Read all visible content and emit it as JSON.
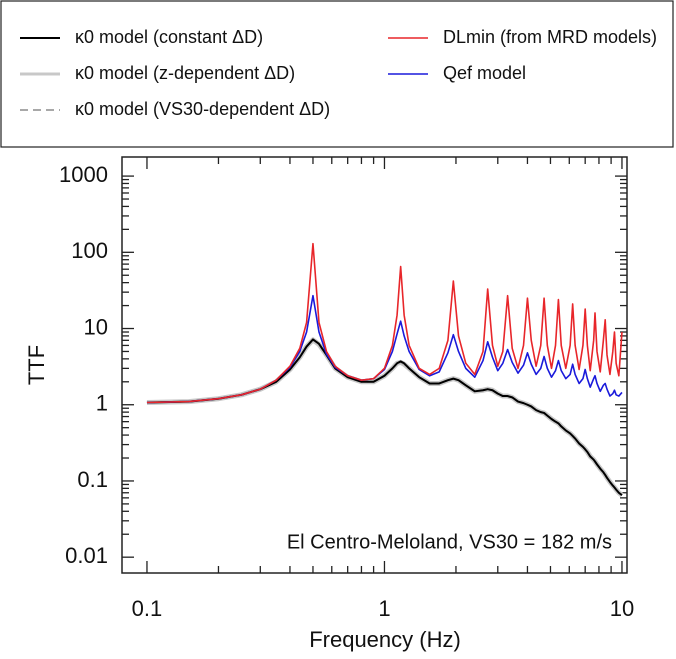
{
  "chart_data": {
    "type": "line",
    "xlabel": "Frequency (Hz)",
    "ylabel": "TTF",
    "annotation": "El Centro-Meloland, VS30 = 182 m/s",
    "xscale": "log",
    "yscale": "log",
    "grid": false,
    "legend": "top",
    "xlim": [
      0.0785,
      10.5
    ],
    "ylim": [
      0.0062,
      1780
    ],
    "xticks": [
      0.1,
      1,
      10
    ],
    "yticks": [
      0.01,
      0.1,
      1,
      10,
      100,
      1000
    ],
    "xminorticks": [
      0.2,
      0.3,
      0.4,
      0.5,
      0.6,
      0.7,
      0.8,
      0.9,
      2,
      3,
      4,
      5,
      6,
      7,
      8,
      9
    ],
    "yminorticks": [
      0.02,
      0.03,
      0.04,
      0.05,
      0.06,
      0.07,
      0.08,
      0.09,
      0.2,
      0.3,
      0.4,
      0.5,
      0.6,
      0.7,
      0.8,
      0.9,
      2,
      3,
      4,
      5,
      6,
      7,
      8,
      9,
      20,
      30,
      40,
      50,
      60,
      70,
      80,
      90,
      200,
      300,
      400,
      500,
      600,
      700,
      800,
      900
    ],
    "x": [
      0.1,
      0.15,
      0.2,
      0.25,
      0.3,
      0.35,
      0.4,
      0.44,
      0.47,
      0.5,
      0.53,
      0.57,
      0.62,
      0.7,
      0.8,
      0.9,
      1.0,
      1.08,
      1.13,
      1.17,
      1.21,
      1.27,
      1.4,
      1.55,
      1.7,
      1.85,
      1.95,
      2.05,
      2.2,
      2.4,
      2.6,
      2.72,
      2.85,
      3.0,
      3.15,
      3.3,
      3.45,
      3.65,
      3.85,
      4.0,
      4.15,
      4.35,
      4.55,
      4.7,
      4.85,
      5.05,
      5.25,
      5.4,
      5.55,
      5.8,
      6.05,
      6.2,
      6.35,
      6.6,
      6.85,
      7.0,
      7.15,
      7.35,
      7.6,
      7.7,
      7.85,
      8.1,
      8.35,
      8.5,
      8.65,
      8.9,
      9.15,
      9.3,
      9.45,
      9.7,
      10
    ],
    "series": [
      {
        "name": "κ0 model (constant ΔD)",
        "color": "#000000",
        "dash": false,
        "width": 2,
        "values": [
          1.07,
          1.1,
          1.2,
          1.35,
          1.6,
          2.0,
          2.9,
          4.2,
          5.8,
          7.2,
          6.3,
          4.5,
          3.0,
          2.3,
          2.0,
          2.0,
          2.4,
          3.0,
          3.5,
          3.7,
          3.5,
          3.0,
          2.3,
          1.9,
          1.9,
          2.1,
          2.2,
          2.1,
          1.8,
          1.5,
          1.55,
          1.6,
          1.55,
          1.4,
          1.3,
          1.3,
          1.25,
          1.1,
          1.05,
          1.0,
          0.95,
          0.85,
          0.8,
          0.78,
          0.72,
          0.65,
          0.6,
          0.57,
          0.52,
          0.46,
          0.42,
          0.39,
          0.36,
          0.31,
          0.28,
          0.26,
          0.24,
          0.21,
          0.19,
          0.18,
          0.165,
          0.145,
          0.13,
          0.12,
          0.11,
          0.097,
          0.087,
          0.082,
          0.077,
          0.07,
          0.065
        ]
      },
      {
        "name": "κ0 model (z-dependent ΔD)",
        "color": "#c8c8c8",
        "dash": false,
        "width": 5,
        "values": [
          1.07,
          1.1,
          1.2,
          1.35,
          1.6,
          2.0,
          2.9,
          4.2,
          5.8,
          7.1,
          6.2,
          4.5,
          3.0,
          2.3,
          2.0,
          2.0,
          2.4,
          3.0,
          3.5,
          3.6,
          3.4,
          3.0,
          2.3,
          1.9,
          1.9,
          2.1,
          2.2,
          2.1,
          1.8,
          1.5,
          1.55,
          1.6,
          1.55,
          1.4,
          1.3,
          1.3,
          1.25,
          1.1,
          1.05,
          1.0,
          0.95,
          0.85,
          0.8,
          0.78,
          0.72,
          0.65,
          0.6,
          0.57,
          0.52,
          0.46,
          0.42,
          0.39,
          0.36,
          0.31,
          0.28,
          0.26,
          0.24,
          0.21,
          0.19,
          0.18,
          0.165,
          0.145,
          0.13,
          0.12,
          0.11,
          0.097,
          0.087,
          0.082,
          0.077,
          0.07,
          0.065
        ]
      },
      {
        "name": "κ0 model (VS30-dependent ΔD)",
        "color": "#a8a8a8",
        "dash": true,
        "width": 2,
        "values": [
          1.07,
          1.1,
          1.2,
          1.35,
          1.6,
          2.0,
          2.9,
          4.2,
          5.8,
          7.1,
          6.2,
          4.5,
          3.0,
          2.3,
          2.0,
          2.0,
          2.4,
          3.0,
          3.5,
          3.6,
          3.4,
          3.0,
          2.3,
          1.9,
          1.9,
          2.1,
          2.2,
          2.1,
          1.8,
          1.5,
          1.55,
          1.6,
          1.55,
          1.4,
          1.3,
          1.3,
          1.25,
          1.1,
          1.05,
          1.0,
          0.95,
          0.85,
          0.8,
          0.78,
          0.72,
          0.65,
          0.6,
          0.57,
          0.52,
          0.46,
          0.42,
          0.39,
          0.36,
          0.31,
          0.28,
          0.26,
          0.24,
          0.21,
          0.19,
          0.18,
          0.165,
          0.145,
          0.13,
          0.12,
          0.11,
          0.097,
          0.087,
          0.082,
          0.077,
          0.07,
          0.065
        ]
      },
      {
        "name": "DLmin (from MRD models)",
        "color": "#e8262a",
        "dash": false,
        "width": 1.6,
        "values": [
          1.07,
          1.1,
          1.2,
          1.35,
          1.6,
          2.1,
          3.2,
          5.5,
          12,
          130,
          12,
          5,
          3.2,
          2.4,
          2.1,
          2.2,
          3.0,
          6,
          15,
          65,
          15,
          6,
          3,
          2.5,
          3,
          7,
          42,
          8,
          3.5,
          2.5,
          5,
          33,
          6,
          3.2,
          5,
          27,
          5.5,
          3,
          6,
          25,
          7,
          3.2,
          6,
          25,
          6,
          3,
          6,
          24,
          6,
          3,
          6,
          21,
          6,
          2.9,
          6,
          18,
          6,
          2.8,
          7,
          16,
          5,
          2.7,
          7,
          13,
          4.5,
          2.5,
          5,
          9,
          3.5,
          2.4,
          9
        ]
      },
      {
        "name": "Qef model",
        "color": "#1a1adb",
        "dash": false,
        "width": 1.6,
        "values": [
          1.07,
          1.1,
          1.2,
          1.35,
          1.6,
          2.1,
          3.1,
          5,
          9,
          27,
          9,
          4.6,
          3.1,
          2.4,
          2.1,
          2.2,
          2.9,
          5,
          8.5,
          12.5,
          8,
          5,
          2.9,
          2.4,
          2.7,
          4.8,
          8.3,
          5,
          3,
          2.3,
          3.8,
          6.7,
          4.2,
          2.8,
          3.5,
          5.3,
          3.6,
          2.6,
          3.3,
          4.8,
          3.4,
          2.5,
          3,
          4.3,
          3,
          2.3,
          2.8,
          3.8,
          2.8,
          2.2,
          2.5,
          3.4,
          2.5,
          1.9,
          2.2,
          2.9,
          2.2,
          1.7,
          2.2,
          2.4,
          1.9,
          1.5,
          1.8,
          1.9,
          1.6,
          1.3,
          1.4,
          1.55,
          1.35,
          1.3,
          1.45
        ]
      }
    ]
  }
}
